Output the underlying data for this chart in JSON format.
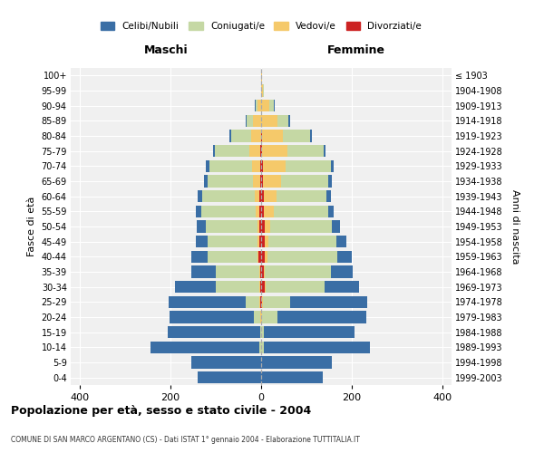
{
  "age_groups": [
    "0-4",
    "5-9",
    "10-14",
    "15-19",
    "20-24",
    "25-29",
    "30-34",
    "35-39",
    "40-44",
    "45-49",
    "50-54",
    "55-59",
    "60-64",
    "65-69",
    "70-74",
    "75-79",
    "80-84",
    "85-89",
    "90-94",
    "95-99",
    "100+"
  ],
  "birth_years": [
    "1999-2003",
    "1994-1998",
    "1989-1993",
    "1984-1988",
    "1979-1983",
    "1974-1978",
    "1969-1973",
    "1964-1968",
    "1959-1963",
    "1954-1958",
    "1949-1953",
    "1944-1948",
    "1939-1943",
    "1934-1938",
    "1929-1933",
    "1924-1928",
    "1919-1923",
    "1914-1918",
    "1909-1913",
    "1904-1908",
    "≤ 1903"
  ],
  "colors": {
    "celibi": "#3a6ea5",
    "coniugati": "#c5d8a4",
    "vedovi": "#f5c96a",
    "divorziati": "#cc2222"
  },
  "males": {
    "celibi": [
      140,
      155,
      240,
      205,
      185,
      170,
      90,
      55,
      35,
      25,
      20,
      12,
      10,
      8,
      8,
      5,
      4,
      2,
      1,
      0,
      0
    ],
    "coniugati": [
      0,
      0,
      5,
      2,
      15,
      30,
      95,
      95,
      110,
      110,
      115,
      120,
      115,
      100,
      95,
      75,
      45,
      15,
      5,
      0,
      0
    ],
    "vedovi": [
      0,
      0,
      0,
      0,
      1,
      2,
      2,
      2,
      3,
      4,
      4,
      8,
      10,
      15,
      18,
      25,
      22,
      18,
      8,
      1,
      0
    ],
    "divorziati": [
      0,
      0,
      0,
      0,
      1,
      2,
      3,
      3,
      6,
      5,
      4,
      5,
      5,
      3,
      2,
      2,
      0,
      0,
      0,
      0,
      0
    ]
  },
  "females": {
    "celibi": [
      135,
      155,
      235,
      200,
      195,
      170,
      75,
      48,
      32,
      22,
      18,
      12,
      10,
      7,
      6,
      5,
      4,
      3,
      2,
      0,
      0
    ],
    "coniugati": [
      0,
      0,
      5,
      5,
      35,
      60,
      130,
      145,
      155,
      150,
      135,
      120,
      110,
      105,
      100,
      80,
      60,
      25,
      10,
      2,
      0
    ],
    "vedovi": [
      0,
      0,
      0,
      0,
      1,
      2,
      2,
      3,
      5,
      8,
      12,
      22,
      28,
      40,
      50,
      55,
      45,
      35,
      18,
      3,
      1
    ],
    "divorziati": [
      0,
      0,
      0,
      0,
      0,
      2,
      8,
      5,
      8,
      8,
      8,
      5,
      5,
      3,
      3,
      2,
      2,
      0,
      0,
      0,
      0
    ]
  },
  "xlim": 420,
  "title": "Popolazione per età, sesso e stato civile - 2004",
  "subtitle": "COMUNE DI SAN MARCO ARGENTANO (CS) - Dati ISTAT 1° gennaio 2004 - Elaborazione TUTTITALIA.IT",
  "ylabel_left": "Fasce di età",
  "ylabel_right": "Anni di nascita",
  "xlabel_left": "Maschi",
  "xlabel_right": "Femmine",
  "legend_labels": [
    "Celibi/Nubili",
    "Coniugati/e",
    "Vedovi/e",
    "Divorziati/e"
  ],
  "background_color": "#f0f0f0"
}
